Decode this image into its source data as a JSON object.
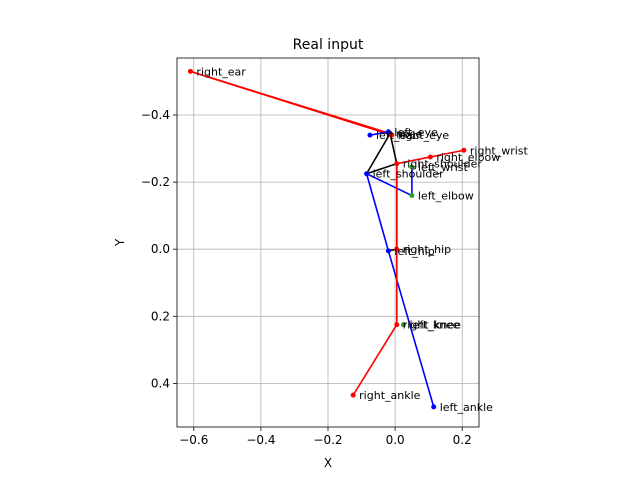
{
  "chart_data": {
    "type": "line",
    "title": "Real input",
    "xlabel": "X",
    "ylabel": "Y",
    "xlim": [
      -0.65,
      0.25
    ],
    "ylim": [
      -0.57,
      0.53
    ],
    "y_inverted": true,
    "grid": true,
    "xticks": [
      -0.6,
      -0.4,
      -0.2,
      0.0,
      0.2
    ],
    "xtick_labels": [
      "−0.6",
      "−0.4",
      "−0.2",
      "0.0",
      "0.2"
    ],
    "yticks": [
      -0.4,
      -0.2,
      0.0,
      0.2,
      0.4
    ],
    "ytick_labels": [
      "−0.4",
      "−0.2",
      "0.0",
      "0.2",
      "0.4"
    ],
    "keypoints": [
      {
        "name": "nose",
        "x": -0.015,
        "y": -0.345,
        "color": "#000000",
        "label": "nose"
      },
      {
        "name": "left_eye",
        "x": -0.02,
        "y": -0.35,
        "color": "#0000ff",
        "label": "left_eye"
      },
      {
        "name": "right_eye",
        "x": -0.01,
        "y": -0.34,
        "color": "#ff0000",
        "label": "right_eye"
      },
      {
        "name": "left_ear",
        "x": -0.075,
        "y": -0.34,
        "color": "#0000ff",
        "label": "left_ear"
      },
      {
        "name": "right_ear",
        "x": -0.61,
        "y": -0.53,
        "color": "#ff0000",
        "label": "right_ear"
      },
      {
        "name": "left_shoulder",
        "x": -0.085,
        "y": -0.225,
        "color": "#0000ff",
        "label": "left_shoulder"
      },
      {
        "name": "right_shoulder",
        "x": 0.005,
        "y": -0.255,
        "color": "#ff0000",
        "label": "right_shoulder"
      },
      {
        "name": "left_elbow",
        "x": 0.05,
        "y": -0.16,
        "color": "#2ca02c",
        "label": "left_elbow"
      },
      {
        "name": "right_elbow",
        "x": 0.105,
        "y": -0.275,
        "color": "#ff0000",
        "label": "right_elbow"
      },
      {
        "name": "left_wrist",
        "x": 0.05,
        "y": -0.245,
        "color": "#2ca02c",
        "label": "left_wrist"
      },
      {
        "name": "right_wrist",
        "x": 0.205,
        "y": -0.295,
        "color": "#ff0000",
        "label": "right_wrist"
      },
      {
        "name": "left_hip",
        "x": -0.02,
        "y": 0.005,
        "color": "#0000ff",
        "label": "left_hip"
      },
      {
        "name": "right_hip",
        "x": 0.005,
        "y": 0.0,
        "color": "#ff0000",
        "label": "right_hip"
      },
      {
        "name": "left_knee",
        "x": 0.025,
        "y": 0.225,
        "color": "#2ca02c",
        "label": "left_knee"
      },
      {
        "name": "right_knee",
        "x": 0.005,
        "y": 0.225,
        "color": "#ff0000",
        "label": "right_knee"
      },
      {
        "name": "left_ankle",
        "x": 0.115,
        "y": 0.47,
        "color": "#0000ff",
        "label": "left_ankle"
      },
      {
        "name": "right_ankle",
        "x": -0.125,
        "y": 0.435,
        "color": "#ff0000",
        "label": "right_ankle"
      }
    ],
    "connections": [
      {
        "from": "right_ear",
        "to": "right_eye",
        "color": "#ff0000"
      },
      {
        "from": "right_ear",
        "to": "nose",
        "color": "#ff0000"
      },
      {
        "from": "right_eye",
        "to": "nose",
        "color": "#ff0000"
      },
      {
        "from": "left_ear",
        "to": "left_eye",
        "color": "#0000ff"
      },
      {
        "from": "left_eye",
        "to": "nose",
        "color": "#0000ff"
      },
      {
        "from": "nose",
        "to": "right_shoulder",
        "color": "#000000"
      },
      {
        "from": "nose",
        "to": "left_shoulder",
        "color": "#000000"
      },
      {
        "from": "left_shoulder",
        "to": "right_shoulder",
        "color": "#000000"
      },
      {
        "from": "right_shoulder",
        "to": "right_hip",
        "color": "#000000"
      },
      {
        "from": "left_hip",
        "to": "right_hip",
        "color": "#000000"
      },
      {
        "from": "left_shoulder",
        "to": "left_elbow",
        "color": "#0000ff"
      },
      {
        "from": "left_elbow",
        "to": "left_wrist",
        "color": "#0000ff"
      },
      {
        "from": "left_shoulder",
        "to": "left_hip",
        "color": "#0000ff"
      },
      {
        "from": "left_hip",
        "to": "left_ankle",
        "color": "#0000ff"
      },
      {
        "from": "right_shoulder",
        "to": "right_elbow",
        "color": "#ff0000"
      },
      {
        "from": "right_elbow",
        "to": "right_wrist",
        "color": "#ff0000"
      },
      {
        "from": "right_shoulder",
        "to": "right_hip",
        "color": "#ff0000"
      },
      {
        "from": "right_hip",
        "to": "right_knee",
        "color": "#ff0000"
      },
      {
        "from": "right_knee",
        "to": "right_ankle",
        "color": "#ff0000"
      }
    ]
  }
}
